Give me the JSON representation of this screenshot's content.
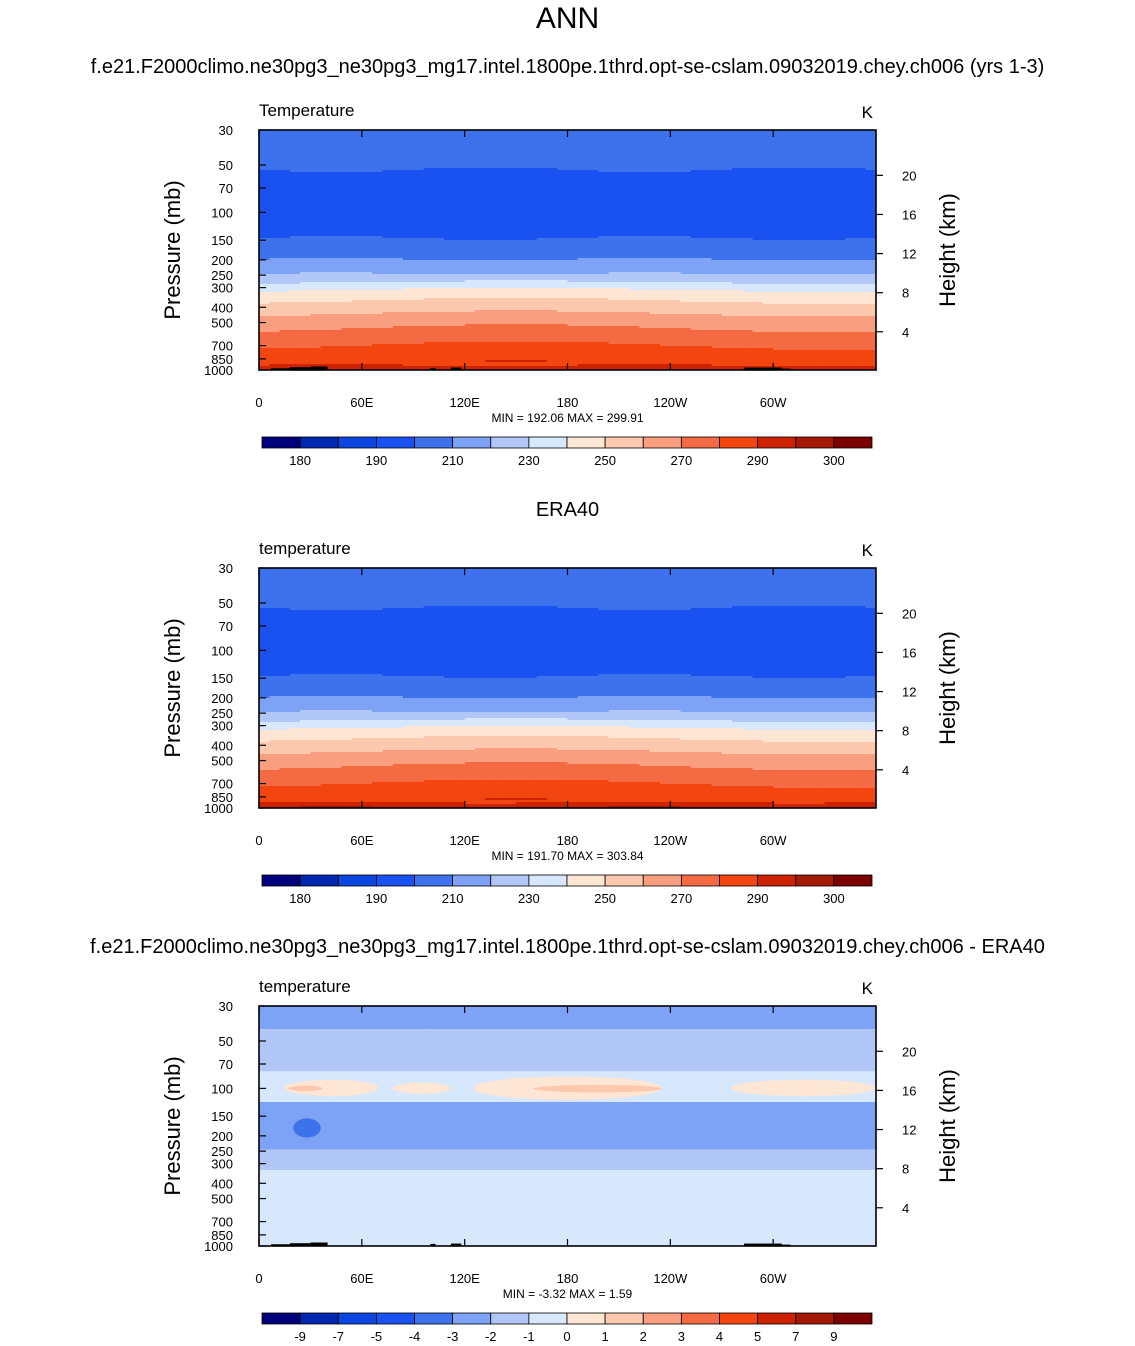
{
  "figure": {
    "title": "ANN",
    "panel1_title": "f.e21.F2000climo.ne30pg3_ne30pg3_mg17.intel.1800pe.1thrd.opt-se-cslam.09032019.chey.ch006 (yrs 1-3)",
    "panel2_title": "ERA40",
    "panel3_title": "f.e21.F2000climo.ne30pg3_ne30pg3_mg17.intel.1800pe.1thrd.opt-se-cslam.09032019.chey.ch006 - ERA40"
  },
  "chart_data": [
    {
      "type": "heatmap",
      "variable_label": "Temperature",
      "units": "K",
      "ylabel": "Pressure (mb)",
      "y2label": "Height (km)",
      "x_ticks": [
        "0",
        "60E",
        "120E",
        "180",
        "120W",
        "60W"
      ],
      "x_tick_lon": [
        0,
        60,
        120,
        180,
        240,
        300
      ],
      "xlim": [
        0,
        360
      ],
      "y_ticks": [
        30,
        50,
        70,
        100,
        150,
        200,
        250,
        300,
        400,
        500,
        700,
        850,
        1000
      ],
      "ylim": [
        1000,
        30
      ],
      "y_scale": "log",
      "height_ticks": [
        20,
        16,
        12,
        8,
        4
      ],
      "stats": "MIN = 192.06  MAX = 299.91",
      "min": 192.06,
      "max": 299.91,
      "levels": [
        180,
        185,
        190,
        200,
        210,
        220,
        230,
        240,
        250,
        260,
        270,
        280,
        290,
        295,
        300
      ],
      "colorbar_labels": [
        "180",
        "190",
        "210",
        "230",
        "250",
        "270",
        "290",
        "300"
      ],
      "colorbar_label_after_index": [
        0,
        2,
        4,
        6,
        8,
        10,
        12,
        14
      ],
      "colors": [
        "#00007d",
        "#0027b0",
        "#0c46e0",
        "#1a52f2",
        "#3e72ed",
        "#7ea2f5",
        "#b0c7f8",
        "#d7e7fc",
        "#fde6d3",
        "#fdc9ae",
        "#f99f7f",
        "#f46b43",
        "#f34510",
        "#cc2200",
        "#a41905",
        "#7d0000"
      ],
      "profile": {
        "p": [
          30,
          45,
          60,
          95,
          140,
          175,
          225,
          265,
          290,
          330,
          400,
          480,
          570,
          680,
          780,
          880,
          960,
          1000
        ],
        "t": [
          207,
          203,
          198,
          196,
          199,
          205,
          215,
          225,
          235,
          245,
          255,
          265,
          272,
          279,
          284,
          288,
          291,
          294
        ]
      },
      "topography": true
    },
    {
      "type": "heatmap",
      "variable_label": "temperature",
      "units": "K",
      "ylabel": "Pressure (mb)",
      "y2label": "Height (km)",
      "x_ticks": [
        "0",
        "60E",
        "120E",
        "180",
        "120W",
        "60W"
      ],
      "x_tick_lon": [
        0,
        60,
        120,
        180,
        240,
        300
      ],
      "xlim": [
        0,
        360
      ],
      "y_ticks": [
        30,
        50,
        70,
        100,
        150,
        200,
        250,
        300,
        400,
        500,
        700,
        850,
        1000
      ],
      "ylim": [
        1000,
        30
      ],
      "y_scale": "log",
      "height_ticks": [
        20,
        16,
        12,
        8,
        4
      ],
      "stats": "MIN = 191.70  MAX = 303.84",
      "min": 191.7,
      "max": 303.84,
      "levels": [
        180,
        185,
        190,
        200,
        210,
        220,
        230,
        240,
        250,
        260,
        270,
        280,
        290,
        295,
        300
      ],
      "colorbar_labels": [
        "180",
        "190",
        "210",
        "230",
        "250",
        "270",
        "290",
        "300"
      ],
      "colorbar_label_after_index": [
        0,
        2,
        4,
        6,
        8,
        10,
        12,
        14
      ],
      "colors": [
        "#00007d",
        "#0027b0",
        "#0c46e0",
        "#1a52f2",
        "#3e72ed",
        "#7ea2f5",
        "#b0c7f8",
        "#d7e7fc",
        "#fde6d3",
        "#fdc9ae",
        "#f99f7f",
        "#f46b43",
        "#f34510",
        "#cc2200",
        "#a41905",
        "#7d0000"
      ],
      "profile": {
        "p": [
          30,
          45,
          60,
          95,
          140,
          175,
          225,
          265,
          290,
          330,
          400,
          480,
          570,
          680,
          780,
          880,
          960,
          1000
        ],
        "t": [
          207,
          203,
          198,
          196,
          199,
          205,
          215,
          225,
          235,
          245,
          255,
          265,
          272,
          279,
          284,
          288,
          292,
          296
        ]
      },
      "topography": false
    },
    {
      "type": "heatmap",
      "variable_label": "temperature",
      "units": "K",
      "ylabel": "Pressure (mb)",
      "y2label": "Height (km)",
      "x_ticks": [
        "0",
        "60E",
        "120E",
        "180",
        "120W",
        "60W"
      ],
      "x_tick_lon": [
        0,
        60,
        120,
        180,
        240,
        300
      ],
      "xlim": [
        0,
        360
      ],
      "y_ticks": [
        30,
        50,
        70,
        100,
        150,
        200,
        250,
        300,
        400,
        500,
        700,
        850,
        1000
      ],
      "ylim": [
        1000,
        30
      ],
      "y_scale": "log",
      "height_ticks": [
        20,
        16,
        12,
        8,
        4
      ],
      "stats": "MIN =  -3.32  MAX =   1.59",
      "min": -3.32,
      "max": 1.59,
      "levels": [
        -9,
        -8,
        -7,
        -6,
        -5,
        -4,
        -3,
        -2,
        -1,
        0,
        1,
        2,
        3,
        4,
        5,
        7,
        9
      ],
      "colorbar_labels": [
        "-9",
        "-7",
        "-5",
        "-4",
        "-3",
        "-2",
        "-1",
        "0",
        "1",
        "2",
        "3",
        "4",
        "5",
        "7",
        "9"
      ],
      "colorbar_label_after_index": [
        0,
        1,
        2,
        3,
        4,
        5,
        6,
        7,
        8,
        9,
        10,
        11,
        12,
        13,
        14
      ],
      "colors": [
        "#00007d",
        "#0027b0",
        "#0c46e0",
        "#1a52f2",
        "#3e72ed",
        "#7ea2f5",
        "#b0c7f8",
        "#d7e7fc",
        "#fde6d3",
        "#fdc9ae",
        "#f99f7f",
        "#f46b43",
        "#f34510",
        "#cc2200",
        "#a41905",
        "#7d0000"
      ],
      "bands": [
        {
          "p": [
            30,
            42
          ],
          "color": "#7ea2f5"
        },
        {
          "p": [
            42,
            78
          ],
          "color": "#b0c7f8"
        },
        {
          "p": [
            78,
            122
          ],
          "color": "#d7e7fc"
        },
        {
          "p": [
            122,
            245
          ],
          "color": "#7ea2f5"
        },
        {
          "p": [
            245,
            330
          ],
          "color": "#b0c7f8"
        },
        {
          "p": [
            330,
            1000
          ],
          "color": "#d7e7fc"
        }
      ],
      "blobs": [
        {
          "lon": [
            15,
            70
          ],
          "p": [
            88,
            112
          ],
          "color": "#fde6d3"
        },
        {
          "lon": [
            78,
            112
          ],
          "p": [
            92,
            108
          ],
          "color": "#fde6d3"
        },
        {
          "lon": [
            125,
            235
          ],
          "p": [
            84,
            118
          ],
          "color": "#fde6d3"
        },
        {
          "lon": [
            275,
            360
          ],
          "p": [
            88,
            112
          ],
          "color": "#fde6d3"
        },
        {
          "lon": [
            160,
            235
          ],
          "p": [
            95,
            106
          ],
          "color": "#fdc9ae"
        },
        {
          "lon": [
            17,
            37
          ],
          "p": [
            96,
            104
          ],
          "color": "#fdc9ae"
        },
        {
          "lon": [
            20,
            36
          ],
          "p": [
            155,
            205
          ],
          "color": "#3e72ed"
        },
        {
          "lon": [
            90,
            135
          ],
          "p": [
            42,
            58
          ],
          "color": "#b0c7f8"
        }
      ],
      "topography": true
    }
  ]
}
